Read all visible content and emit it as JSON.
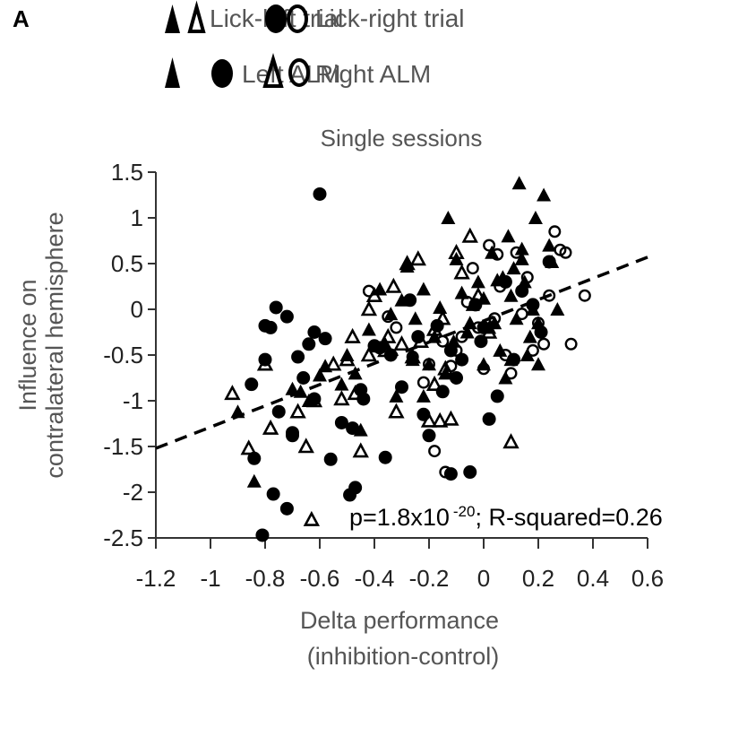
{
  "panel_label": "A",
  "legend": {
    "row1": [
      {
        "label": "Lick-left trial",
        "markers": [
          "filled-triangle",
          "open-triangle"
        ]
      },
      {
        "label": "Lick-right trial",
        "markers": [
          "filled-circle",
          "open-circle"
        ]
      }
    ],
    "row2": [
      {
        "label": "Left ALM",
        "markers": [
          "filled-triangle",
          "filled-circle"
        ]
      },
      {
        "label": "Right ALM",
        "markers": [
          "open-triangle",
          "open-circle"
        ]
      }
    ]
  },
  "chart_data": {
    "type": "scatter",
    "title": "Single sessions",
    "xlabel": [
      "Delta performance",
      "(inhibition-control)"
    ],
    "ylabel": [
      "Influence on",
      "contralateral hemisphere"
    ],
    "xlim": [
      -1.2,
      0.6
    ],
    "ylim": [
      -2.5,
      1.5
    ],
    "xticks": [
      -1.2,
      -1,
      -0.8,
      -0.6,
      -0.4,
      -0.2,
      0,
      0.2,
      0.4,
      0.6
    ],
    "xtick_labels": [
      "-1.2",
      "-1",
      "-0.8",
      "-0.6",
      "-0.4",
      "-0.2",
      "0",
      "0.2",
      "0.4",
      "0.6"
    ],
    "yticks": [
      1.5,
      1,
      0.5,
      0,
      -0.5,
      -1,
      -1.5,
      -2,
      -2.5
    ],
    "ytick_labels": [
      "1.5",
      "1",
      "0.5",
      "0",
      "-0.5",
      "-1",
      "-1.5",
      "-2",
      "-2.5"
    ],
    "grid": false,
    "annotation": {
      "prefix": "p=1.8x10",
      "exponent": "-20",
      "suffix": "; R-squared=0.26"
    },
    "fit_line": {
      "x": [
        -1.2,
        0.6
      ],
      "y": [
        -1.52,
        0.57
      ],
      "style": "dashed"
    },
    "series": [
      {
        "name": "Left ALM, lick-left trial",
        "marker": "filled-triangle",
        "x": [
          -0.9,
          -0.84,
          -0.7,
          -0.67,
          -0.64,
          -0.6,
          -0.58,
          -0.52,
          -0.47,
          -0.45,
          -0.42,
          -0.38,
          -0.36,
          -0.34,
          -0.3,
          -0.28,
          -0.25,
          -0.22,
          -0.2,
          -0.18,
          -0.16,
          -0.13,
          -0.1,
          -0.08,
          -0.06,
          -0.04,
          -0.02,
          0.0,
          0.02,
          0.03,
          0.05,
          0.06,
          0.08,
          0.09,
          0.1,
          0.11,
          0.12,
          0.13,
          0.14,
          0.15,
          0.16,
          0.18,
          0.19,
          0.2,
          0.22,
          0.24,
          0.25,
          0.27,
          -0.26,
          -0.22,
          -0.14,
          -0.11,
          -0.05,
          0.0,
          0.04,
          0.07,
          0.1,
          0.14,
          0.17,
          0.2,
          -0.32,
          -0.5
        ],
        "y": [
          -1.12,
          -1.88,
          -0.87,
          -0.9,
          -1.0,
          -0.72,
          -0.62,
          -0.82,
          -0.7,
          -1.32,
          -0.22,
          0.22,
          -0.38,
          -0.05,
          0.1,
          0.47,
          -0.1,
          0.22,
          -0.6,
          -0.3,
          0.02,
          1.0,
          0.55,
          0.18,
          -0.25,
          0.05,
          0.3,
          0.12,
          -0.2,
          0.62,
          0.32,
          -0.45,
          -0.75,
          0.8,
          0.15,
          0.45,
          -0.1,
          1.38,
          0.66,
          0.3,
          -0.5,
          0.0,
          1.0,
          -0.6,
          1.25,
          0.7,
          0.52,
          0.0,
          -0.55,
          -0.95,
          -0.7,
          -0.35,
          -0.15,
          -0.6,
          -0.15,
          0.35,
          -0.55,
          0.55,
          -0.3,
          -0.15,
          -0.95,
          -0.5
        ]
      },
      {
        "name": "Right ALM, lick-left trial",
        "marker": "open-triangle",
        "x": [
          -0.92,
          -0.86,
          -0.8,
          -0.78,
          -0.68,
          -0.65,
          -0.63,
          -0.55,
          -0.52,
          -0.5,
          -0.48,
          -0.45,
          -0.42,
          -0.4,
          -0.36,
          -0.33,
          -0.3,
          -0.28,
          -0.26,
          -0.23,
          -0.2,
          -0.18,
          -0.16,
          -0.14,
          -0.12,
          -0.1,
          -0.08,
          -0.05,
          -0.02,
          0.02,
          -0.47,
          -0.32,
          -0.18,
          -0.15,
          0.1,
          -0.24,
          -0.35,
          -0.62,
          -0.42
        ],
        "y": [
          -0.92,
          -1.52,
          -0.6,
          -1.3,
          -1.12,
          -1.5,
          -2.3,
          -0.6,
          -0.98,
          -0.55,
          -0.3,
          -1.55,
          0.0,
          0.15,
          -0.45,
          0.25,
          -0.38,
          0.5,
          -0.52,
          -0.35,
          -1.22,
          -0.82,
          -1.22,
          -0.65,
          -1.2,
          0.62,
          0.4,
          0.8,
          0.15,
          -0.25,
          -0.92,
          -1.12,
          -0.22,
          -0.1,
          -1.45,
          0.55,
          -0.3,
          -1.0,
          -0.5
        ]
      },
      {
        "name": "Left ALM, lick-right trial",
        "marker": "filled-circle",
        "x": [
          -0.81,
          -0.84,
          -0.77,
          -0.72,
          -0.75,
          -0.7,
          -0.66,
          -0.62,
          -0.85,
          -0.8,
          -0.76,
          -0.78,
          -0.72,
          -0.68,
          -0.64,
          -0.6,
          -0.56,
          -0.52,
          -0.49,
          -0.47,
          -0.44,
          -0.4,
          -0.36,
          -0.34,
          -0.3,
          -0.27,
          -0.24,
          -0.2,
          -0.17,
          -0.15,
          -0.12,
          -0.1,
          -0.08,
          -0.05,
          -0.03,
          -0.01,
          0.02,
          0.05,
          0.08,
          0.11,
          -0.62,
          -0.48,
          -0.8,
          -0.7,
          -0.58,
          -0.22,
          -0.12,
          -0.45,
          -0.38,
          0.0,
          0.14,
          0.18,
          0.21,
          0.24
        ],
        "y": [
          -2.47,
          -1.63,
          -2.02,
          -2.18,
          -1.12,
          -1.38,
          -0.75,
          -0.98,
          -0.82,
          -0.55,
          0.02,
          -0.2,
          -0.08,
          -0.52,
          -0.38,
          1.26,
          -1.64,
          -1.24,
          -2.03,
          -1.95,
          -0.98,
          -0.4,
          -1.62,
          -0.5,
          -0.85,
          0.1,
          -0.3,
          -1.38,
          -0.18,
          -0.9,
          -1.8,
          -0.75,
          -0.55,
          -1.78,
          0.05,
          -0.35,
          -1.2,
          -0.95,
          0.3,
          -0.55,
          -0.25,
          -1.3,
          -0.18,
          -1.35,
          -0.32,
          -1.15,
          -0.45,
          -0.88,
          -0.42,
          -0.2,
          0.2,
          0.05,
          -0.25,
          0.52
        ]
      },
      {
        "name": "Right ALM, lick-right trial",
        "marker": "open-circle",
        "x": [
          -0.42,
          -0.35,
          -0.32,
          -0.26,
          -0.22,
          -0.18,
          -0.15,
          -0.12,
          -0.08,
          -0.06,
          -0.04,
          0.0,
          0.02,
          0.04,
          0.06,
          0.08,
          0.1,
          0.12,
          0.14,
          0.16,
          0.18,
          0.2,
          0.22,
          0.24,
          0.26,
          0.28,
          0.3,
          0.32,
          0.37,
          -0.14,
          -0.2,
          -0.02,
          0.05,
          -0.1
        ],
        "y": [
          0.2,
          -0.08,
          -0.2,
          -0.52,
          -0.8,
          -1.55,
          -0.35,
          -0.62,
          -0.3,
          0.08,
          0.45,
          -0.65,
          0.7,
          -0.1,
          0.25,
          -0.5,
          -0.7,
          0.62,
          -0.05,
          0.35,
          -0.45,
          -0.15,
          -0.38,
          0.15,
          0.85,
          0.65,
          0.62,
          -0.38,
          0.15,
          -1.78,
          -0.6,
          -0.2,
          0.6,
          -0.45
        ]
      }
    ]
  }
}
